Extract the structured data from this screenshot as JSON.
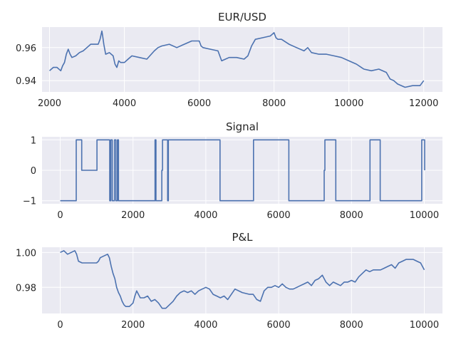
{
  "chart_data": [
    {
      "type": "line",
      "title": "EUR/USD",
      "xlabel": "",
      "ylabel": "",
      "xlim": [
        1800,
        12500
      ],
      "ylim": [
        0.9332,
        0.9724
      ],
      "xticks": [
        2000,
        4000,
        6000,
        8000,
        10000,
        12000
      ],
      "xtick_labels": [
        "2000",
        "4000",
        "6000",
        "8000",
        "10000",
        "12000"
      ],
      "yticks": [
        0.94,
        0.96
      ],
      "ytick_labels": [
        "0.94",
        "0.96"
      ],
      "grid": true,
      "series": [
        {
          "color": "#4c72b0",
          "x": [
            2000,
            2050,
            2100,
            2200,
            2300,
            2350,
            2400,
            2450,
            2500,
            2550,
            2600,
            2700,
            2800,
            2900,
            3000,
            3100,
            3200,
            3300,
            3350,
            3400,
            3420,
            3450,
            3500,
            3600,
            3700,
            3750,
            3800,
            3850,
            3900,
            4000,
            4100,
            4200,
            4400,
            4600,
            4800,
            4900,
            5000,
            5200,
            5400,
            5600,
            5800,
            6000,
            6050,
            6100,
            6300,
            6500,
            6600,
            6700,
            6800,
            7000,
            7200,
            7300,
            7400,
            7500,
            7700,
            7900,
            8000,
            8050,
            8100,
            8200,
            8400,
            8600,
            8800,
            8900,
            9000,
            9200,
            9400,
            9600,
            9800,
            10000,
            10200,
            10400,
            10600,
            10800,
            11000,
            11100,
            11200,
            11300,
            11500,
            11700,
            11900,
            12000
          ],
          "y": [
            0.946,
            0.947,
            0.948,
            0.948,
            0.946,
            0.949,
            0.951,
            0.956,
            0.959,
            0.956,
            0.954,
            0.955,
            0.957,
            0.958,
            0.96,
            0.962,
            0.962,
            0.962,
            0.965,
            0.97,
            0.967,
            0.962,
            0.956,
            0.957,
            0.955,
            0.95,
            0.948,
            0.952,
            0.951,
            0.951,
            0.953,
            0.955,
            0.954,
            0.953,
            0.958,
            0.96,
            0.961,
            0.962,
            0.96,
            0.962,
            0.964,
            0.964,
            0.961,
            0.96,
            0.959,
            0.958,
            0.952,
            0.953,
            0.954,
            0.954,
            0.953,
            0.955,
            0.961,
            0.965,
            0.966,
            0.967,
            0.969,
            0.966,
            0.965,
            0.965,
            0.962,
            0.96,
            0.958,
            0.96,
            0.957,
            0.956,
            0.956,
            0.955,
            0.954,
            0.952,
            0.95,
            0.947,
            0.946,
            0.947,
            0.945,
            0.941,
            0.94,
            0.938,
            0.936,
            0.937,
            0.937,
            0.94
          ]
        }
      ]
    },
    {
      "type": "line",
      "title": "Signal",
      "xlabel": "",
      "ylabel": "",
      "xlim": [
        -500,
        10500
      ],
      "ylim": [
        -1.1,
        1.1
      ],
      "xticks": [
        0,
        2000,
        4000,
        6000,
        8000,
        10000
      ],
      "xtick_labels": [
        "0",
        "2000",
        "4000",
        "6000",
        "8000",
        "10000"
      ],
      "yticks": [
        1,
        0,
        -1
      ],
      "ytick_labels": [
        "1",
        "0",
        "−1"
      ],
      "grid": true,
      "series": [
        {
          "color": "#4c72b0",
          "step": true,
          "x": [
            0,
            430,
            440,
            580,
            590,
            1000,
            1010,
            1350,
            1360,
            1380,
            1390,
            1420,
            1430,
            1480,
            1490,
            1520,
            1530,
            1560,
            1570,
            1590,
            1600,
            2600,
            2605,
            2620,
            2630,
            2640,
            2650,
            2780,
            2790,
            2800,
            2810,
            2940,
            2950,
            2960,
            2970,
            4380,
            4390,
            5300,
            5310,
            6270,
            6280,
            7240,
            7250,
            7260,
            7270,
            7560,
            7570,
            8500,
            8510,
            8780,
            8790,
            9920,
            9930,
            10000,
            10010
          ],
          "y": [
            -1,
            -1,
            1,
            1,
            0,
            0,
            1,
            1,
            -1,
            -1,
            1,
            1,
            -1,
            -1,
            1,
            1,
            -1,
            -1,
            1,
            1,
            -1,
            -1,
            1,
            1,
            -1,
            -1,
            -1,
            -1,
            0,
            0,
            1,
            1,
            -1,
            -1,
            1,
            1,
            -1,
            -1,
            1,
            1,
            -1,
            -1,
            0,
            0,
            1,
            1,
            -1,
            -1,
            1,
            1,
            -1,
            -1,
            1,
            1,
            0
          ]
        }
      ]
    },
    {
      "type": "line",
      "title": "P&L",
      "xlabel": "",
      "ylabel": "",
      "xlim": [
        -500,
        10500
      ],
      "ylim": [
        0.965,
        1.003
      ],
      "xticks": [
        0,
        2000,
        4000,
        6000,
        8000,
        10000
      ],
      "xtick_labels": [
        "0",
        "2000",
        "4000",
        "6000",
        "8000",
        "10000"
      ],
      "yticks": [
        1.0,
        0.98
      ],
      "ytick_labels": [
        "1.00",
        "0.98"
      ],
      "grid": true,
      "series": [
        {
          "color": "#4c72b0",
          "x": [
            0,
            100,
            200,
            300,
            400,
            450,
            500,
            600,
            700,
            800,
            900,
            1000,
            1050,
            1100,
            1200,
            1300,
            1350,
            1400,
            1450,
            1500,
            1550,
            1600,
            1650,
            1700,
            1750,
            1800,
            1900,
            2000,
            2050,
            2100,
            2200,
            2300,
            2400,
            2500,
            2600,
            2700,
            2800,
            2900,
            3000,
            3100,
            3200,
            3300,
            3400,
            3500,
            3600,
            3700,
            3800,
            3900,
            4000,
            4100,
            4200,
            4300,
            4400,
            4500,
            4600,
            4700,
            4800,
            5000,
            5200,
            5300,
            5400,
            5500,
            5600,
            5700,
            5800,
            5900,
            6000,
            6100,
            6200,
            6300,
            6400,
            6500,
            6600,
            6700,
            6800,
            6900,
            7000,
            7100,
            7200,
            7300,
            7400,
            7500,
            7600,
            7700,
            7800,
            7900,
            8000,
            8100,
            8200,
            8300,
            8400,
            8500,
            8600,
            8700,
            8800,
            8900,
            9000,
            9100,
            9200,
            9300,
            9400,
            9500,
            9600,
            9700,
            9800,
            9900,
            10000
          ],
          "y": [
            1.0,
            1.001,
            0.999,
            1.0,
            1.001,
            0.999,
            0.995,
            0.994,
            0.994,
            0.994,
            0.994,
            0.994,
            0.995,
            0.997,
            0.998,
            0.999,
            0.997,
            0.992,
            0.988,
            0.985,
            0.98,
            0.977,
            0.975,
            0.972,
            0.97,
            0.969,
            0.969,
            0.971,
            0.975,
            0.978,
            0.974,
            0.974,
            0.975,
            0.972,
            0.973,
            0.971,
            0.968,
            0.968,
            0.97,
            0.972,
            0.975,
            0.977,
            0.978,
            0.977,
            0.978,
            0.976,
            0.978,
            0.979,
            0.98,
            0.979,
            0.976,
            0.975,
            0.974,
            0.975,
            0.973,
            0.976,
            0.979,
            0.977,
            0.976,
            0.976,
            0.973,
            0.972,
            0.978,
            0.98,
            0.98,
            0.981,
            0.98,
            0.982,
            0.98,
            0.979,
            0.979,
            0.98,
            0.981,
            0.982,
            0.983,
            0.981,
            0.984,
            0.985,
            0.987,
            0.983,
            0.981,
            0.983,
            0.982,
            0.981,
            0.983,
            0.983,
            0.984,
            0.983,
            0.986,
            0.988,
            0.99,
            0.989,
            0.99,
            0.99,
            0.99,
            0.991,
            0.992,
            0.993,
            0.991,
            0.994,
            0.995,
            0.996,
            0.996,
            0.996,
            0.995,
            0.994,
            0.99
          ]
        }
      ]
    }
  ]
}
